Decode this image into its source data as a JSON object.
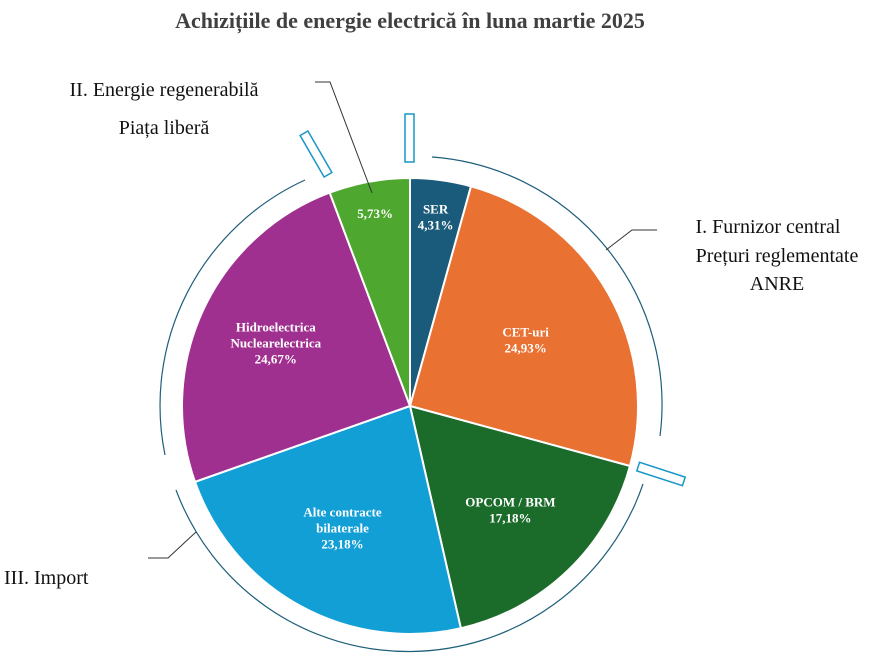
{
  "chart_data": {
    "type": "pie",
    "title": "Achizițiile de energie electrică în luna martie 2025",
    "slices": [
      {
        "label_lines": [
          "SER"
        ],
        "value": 4.31,
        "value_label": "4,31%",
        "color": "#1a5a7a"
      },
      {
        "label_lines": [
          "CET-uri"
        ],
        "value": 24.93,
        "value_label": "24,93%",
        "color": "#e97132"
      },
      {
        "label_lines": [
          "OPCOM / BRM"
        ],
        "value": 17.18,
        "value_label": "17,18%",
        "color": "#1b6b2a"
      },
      {
        "label_lines": [
          "Alte contracte",
          "bilaterale"
        ],
        "value": 23.18,
        "value_label": "23,18%",
        "color": "#129fd6"
      },
      {
        "label_lines": [
          "Hidroelectrica",
          "Nuclearelectrica"
        ],
        "value": 24.67,
        "value_label": "24,67%",
        "color": "#a0308f"
      },
      {
        "label_lines": [],
        "value": 5.73,
        "value_label": "5,73%",
        "color": "#4ea72e"
      }
    ],
    "groups": [
      {
        "id": "group-1",
        "lines": [
          "I.  Furnizor central",
          "Prețuri reglementate",
          "ANRE"
        ]
      },
      {
        "id": "group-2",
        "lines": [
          "II. Energie regenerabilă",
          "Piața liberă"
        ]
      },
      {
        "id": "group-3",
        "lines": [
          "III. Import"
        ]
      }
    ],
    "accent_color": "#1f5f7a"
  }
}
